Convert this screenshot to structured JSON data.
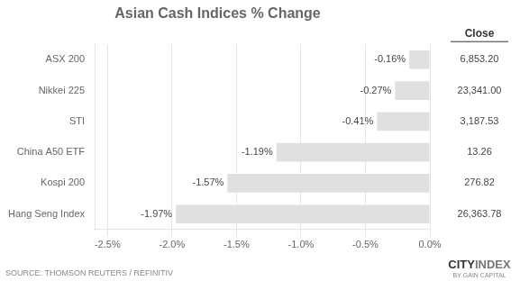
{
  "chart_data": {
    "type": "bar",
    "orientation": "horizontal",
    "title": "Asian Cash Indices % Change",
    "categories": [
      "Hang Seng Index",
      "Kospi 200",
      "China A50 ETF",
      "STI",
      "Nikkei 225",
      "ASX 200"
    ],
    "values": [
      -1.97,
      -1.57,
      -1.19,
      -0.41,
      -0.27,
      -0.16
    ],
    "value_labels": [
      "-1.97%",
      "-1.57%",
      "-1.19%",
      "-0.41%",
      "-0.27%",
      "-0.16%"
    ],
    "data_labels": true,
    "color": "#e0e0e0",
    "xlim": [
      -2.6,
      0.0
    ],
    "xticks": [
      {
        "value": -2.5,
        "label": "-2.5%"
      },
      {
        "value": -2.0,
        "label": "-2.0%"
      },
      {
        "value": -1.5,
        "label": "-1.5%"
      },
      {
        "value": -1.0,
        "label": "-1.0%"
      },
      {
        "value": -0.5,
        "label": "-0.5%"
      },
      {
        "value": 0.0,
        "label": "0.0%"
      }
    ],
    "grid": true,
    "close_header": "Close",
    "close_values": [
      "26,363.78",
      "276.82",
      "13.26",
      "3,187.53",
      "23,341.00",
      "6,853.20"
    ],
    "source": "SOURCE: THOMSON REUTERS / REFINITIV",
    "logo": [
      "CITY",
      "INDEX"
    ],
    "logo_caption": "BY GAIN CAPITAL"
  }
}
